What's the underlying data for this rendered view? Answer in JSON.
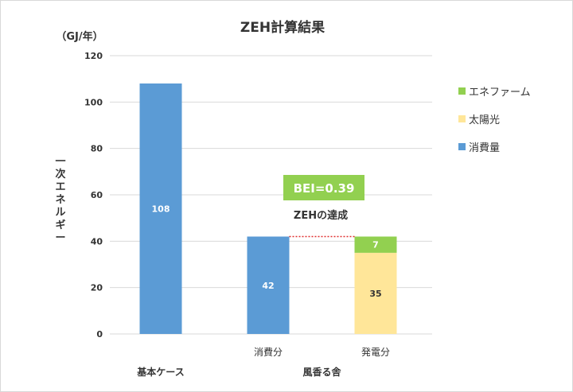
{
  "chart_data": {
    "type": "bar",
    "title": "ZEH計算結果",
    "unit_label": "（GJ/年）",
    "ylabel": "一次エネルギー",
    "ylim": [
      0,
      120
    ],
    "yticks": [
      0,
      20,
      40,
      60,
      80,
      100,
      120
    ],
    "bars": [
      {
        "category": "",
        "group": "基本ケース",
        "stack": [
          {
            "series": "消費量",
            "value": 108
          }
        ]
      },
      {
        "category": "消費分",
        "group": "風香る舎",
        "stack": [
          {
            "series": "消費量",
            "value": 42
          }
        ]
      },
      {
        "category": "発電分",
        "group": "風香る舎",
        "stack": [
          {
            "series": "太陽光",
            "value": 35
          },
          {
            "series": "エネファーム",
            "value": 7
          }
        ]
      }
    ],
    "groups": [
      "基本ケース",
      "風香る舎"
    ],
    "series": [
      {
        "name": "エネファーム",
        "color": "#92d050"
      },
      {
        "name": "太陽光",
        "color": "#ffe699"
      },
      {
        "name": "消費量",
        "color": "#5b9bd5"
      }
    ],
    "annotations": {
      "bei_label": "BEI=0.39",
      "achievement_label": "ZEHの達成"
    },
    "grid": true,
    "legend_position": "right"
  }
}
